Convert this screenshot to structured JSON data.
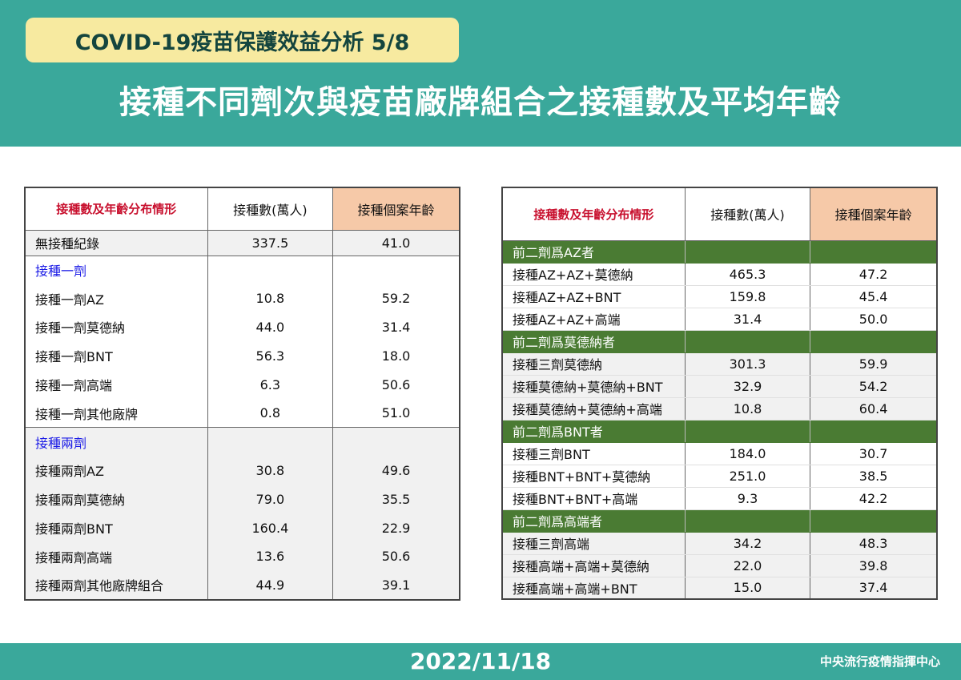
{
  "header": {
    "subtitle": "COVID-19疫苗保護效益分析 5/8",
    "title": "接種不同劑次與疫苗廠牌組合之接種數及平均年齡"
  },
  "footer": {
    "date": "2022/11/18",
    "org": "中央流行疫情指揮中心"
  },
  "colors": {
    "teal": "#3aa89b",
    "yellow": "#f7eaa0",
    "green": "#4a7b33",
    "peach": "#f6c9a8",
    "red": "#c8102e",
    "blue": "#1a1ae6"
  },
  "left_table": {
    "headers": [
      "接種數及年齡分布情形",
      "接種數(萬人)",
      "接種個案年齡"
    ],
    "rows": [
      {
        "label": "無接種紀錄",
        "count": "337.5",
        "age": "41.0"
      },
      {
        "label": "接種一劑",
        "count": "",
        "age": ""
      },
      {
        "label": "接種一劑AZ",
        "count": "10.8",
        "age": "59.2"
      },
      {
        "label": "接種一劑莫德納",
        "count": "44.0",
        "age": "31.4"
      },
      {
        "label": "接種一劑BNT",
        "count": "56.3",
        "age": "18.0"
      },
      {
        "label": "接種一劑高端",
        "count": "6.3",
        "age": "50.6"
      },
      {
        "label": "接種一劑其他廠牌",
        "count": "0.8",
        "age": "51.0"
      },
      {
        "label": "接種兩劑",
        "count": "",
        "age": ""
      },
      {
        "label": "接種兩劑AZ",
        "count": "30.8",
        "age": "49.6"
      },
      {
        "label": "接種兩劑莫德納",
        "count": "79.0",
        "age": "35.5"
      },
      {
        "label": "接種兩劑BNT",
        "count": "160.4",
        "age": "22.9"
      },
      {
        "label": "接種兩劑高端",
        "count": "13.6",
        "age": "50.6"
      },
      {
        "label": "接種兩劑其他廠牌組合",
        "count": "44.9",
        "age": "39.1"
      }
    ]
  },
  "right_table": {
    "headers": [
      "接種數及年齡分布情形",
      "接種數(萬人)",
      "接種個案年齡"
    ],
    "rows": [
      {
        "label": "前二劑爲AZ者",
        "count": "",
        "age": ""
      },
      {
        "label": "接種AZ+AZ+莫德納",
        "count": "465.3",
        "age": "47.2"
      },
      {
        "label": "接種AZ+AZ+BNT",
        "count": "159.8",
        "age": "45.4"
      },
      {
        "label": "接種AZ+AZ+高端",
        "count": "31.4",
        "age": "50.0"
      },
      {
        "label": "前二劑爲莫德納者",
        "count": "",
        "age": ""
      },
      {
        "label": "接種三劑莫德納",
        "count": "301.3",
        "age": "59.9"
      },
      {
        "label": "接種莫德納+莫德納+BNT",
        "count": "32.9",
        "age": "54.2"
      },
      {
        "label": "接種莫德納+莫德納+高端",
        "count": "10.8",
        "age": "60.4"
      },
      {
        "label": "前二劑爲BNT者",
        "count": "",
        "age": ""
      },
      {
        "label": "接種三劑BNT",
        "count": "184.0",
        "age": "30.7"
      },
      {
        "label": "接種BNT+BNT+莫德納",
        "count": "251.0",
        "age": "38.5"
      },
      {
        "label": "接種BNT+BNT+高端",
        "count": "9.3",
        "age": "42.2"
      },
      {
        "label": "前二劑爲高端者",
        "count": "",
        "age": ""
      },
      {
        "label": "接種三劑高端",
        "count": "34.2",
        "age": "48.3"
      },
      {
        "label": "接種高端+高端+莫德納",
        "count": "22.0",
        "age": "39.8"
      },
      {
        "label": "接種高端+高端+BNT",
        "count": "15.0",
        "age": "37.4"
      }
    ]
  }
}
